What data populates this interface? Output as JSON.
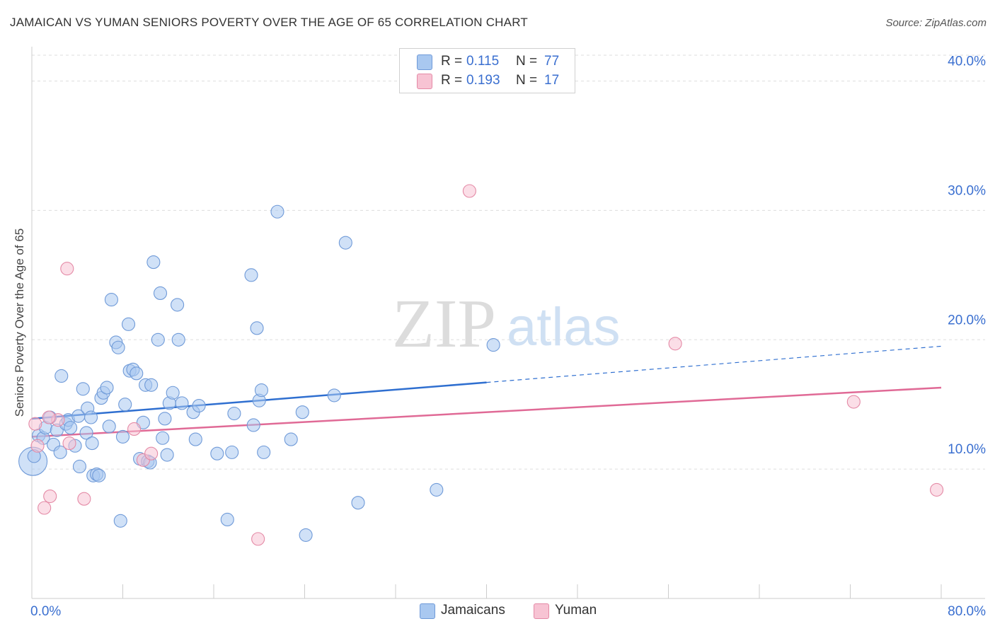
{
  "title": "JAMAICAN VS YUMAN SENIORS POVERTY OVER THE AGE OF 65 CORRELATION CHART",
  "source": "Source: ZipAtlas.com",
  "watermark": {
    "zip": "ZIP",
    "atlas": "atlas"
  },
  "legend": {
    "r_label": "R =",
    "n_label": "N =",
    "rows": [
      {
        "r": "0.115",
        "n": "77",
        "color": "#a9c8f0",
        "border": "#6f9ad8"
      },
      {
        "r": "0.193",
        "n": "17",
        "color": "#f7c3d3",
        "border": "#e48aa6"
      }
    ]
  },
  "bottom_legend": [
    {
      "label": "Jamaicans",
      "color": "#a9c8f0",
      "border": "#6f9ad8"
    },
    {
      "label": "Yuman",
      "color": "#f7c3d3",
      "border": "#e48aa6"
    }
  ],
  "chart_data": {
    "type": "scatter",
    "title": "JAMAICAN VS YUMAN SENIORS POVERTY OVER THE AGE OF 65 CORRELATION CHART",
    "xlabel": "",
    "ylabel": "Seniors Poverty Over the Age of 65",
    "xlim": [
      0,
      80
    ],
    "ylim": [
      0,
      42
    ],
    "x_tick_labels": [
      "0.0%",
      "80.0%"
    ],
    "y_ticks": [
      10,
      20,
      30,
      40
    ],
    "y_tick_labels": [
      "10.0%",
      "20.0%",
      "30.0%",
      "40.0%"
    ],
    "grid": true,
    "legend_position": "top-center",
    "series": [
      {
        "name": "Jamaicans",
        "color": "#6f9ad8",
        "fill": "#a9c8f0",
        "trend": {
          "x": [
            0,
            40,
            80
          ],
          "y": [
            13.9,
            16.7,
            19.5
          ],
          "solid_until": 40,
          "color": "#2f6fd0"
        },
        "points": [
          [
            0.1,
            10.6
          ],
          [
            0.2,
            11.0
          ],
          [
            0.6,
            12.6
          ],
          [
            1.0,
            12.4
          ],
          [
            1.2,
            13.2
          ],
          [
            1.6,
            14.0
          ],
          [
            1.9,
            11.9
          ],
          [
            2.2,
            13.0
          ],
          [
            2.5,
            11.3
          ],
          [
            2.6,
            17.2
          ],
          [
            3.0,
            13.5
          ],
          [
            3.2,
            13.8
          ],
          [
            3.4,
            13.2
          ],
          [
            3.8,
            11.8
          ],
          [
            4.1,
            14.1
          ],
          [
            4.2,
            10.2
          ],
          [
            4.5,
            16.2
          ],
          [
            4.8,
            12.8
          ],
          [
            4.9,
            14.7
          ],
          [
            5.2,
            14.0
          ],
          [
            5.3,
            12.0
          ],
          [
            5.4,
            9.5
          ],
          [
            5.7,
            9.6
          ],
          [
            5.9,
            9.5
          ],
          [
            6.1,
            15.5
          ],
          [
            6.3,
            15.9
          ],
          [
            6.6,
            16.3
          ],
          [
            6.8,
            13.3
          ],
          [
            7.0,
            23.1
          ],
          [
            7.4,
            19.8
          ],
          [
            7.6,
            19.4
          ],
          [
            7.8,
            6.0
          ],
          [
            8.0,
            12.5
          ],
          [
            8.2,
            15.0
          ],
          [
            8.5,
            21.2
          ],
          [
            8.6,
            17.6
          ],
          [
            8.9,
            17.7
          ],
          [
            9.2,
            17.4
          ],
          [
            9.5,
            10.8
          ],
          [
            9.8,
            13.6
          ],
          [
            10.0,
            16.5
          ],
          [
            10.2,
            10.6
          ],
          [
            10.4,
            10.5
          ],
          [
            10.5,
            16.5
          ],
          [
            10.7,
            26.0
          ],
          [
            11.1,
            20.0
          ],
          [
            11.3,
            23.6
          ],
          [
            11.5,
            12.4
          ],
          [
            11.7,
            13.9
          ],
          [
            11.9,
            11.1
          ],
          [
            12.1,
            15.1
          ],
          [
            12.4,
            15.9
          ],
          [
            12.8,
            22.7
          ],
          [
            12.9,
            20.0
          ],
          [
            13.2,
            15.1
          ],
          [
            14.2,
            14.4
          ],
          [
            14.4,
            12.3
          ],
          [
            14.7,
            14.9
          ],
          [
            16.3,
            11.2
          ],
          [
            17.2,
            6.1
          ],
          [
            17.6,
            11.3
          ],
          [
            17.8,
            14.3
          ],
          [
            19.3,
            25.0
          ],
          [
            19.5,
            13.4
          ],
          [
            19.8,
            20.9
          ],
          [
            20.0,
            15.3
          ],
          [
            20.2,
            16.1
          ],
          [
            20.4,
            11.3
          ],
          [
            21.6,
            29.9
          ],
          [
            22.8,
            12.3
          ],
          [
            23.8,
            14.4
          ],
          [
            24.1,
            4.9
          ],
          [
            26.6,
            15.7
          ],
          [
            27.6,
            27.5
          ],
          [
            28.7,
            7.4
          ],
          [
            35.6,
            8.4
          ],
          [
            40.6,
            19.6
          ]
        ]
      },
      {
        "name": "Yuman",
        "color": "#e48aa6",
        "fill": "#f7c3d3",
        "trend": {
          "x": [
            0,
            80
          ],
          "y": [
            12.5,
            16.3
          ],
          "solid_until": 80,
          "color": "#e06a96"
        },
        "points": [
          [
            0.3,
            13.5
          ],
          [
            0.5,
            11.8
          ],
          [
            1.1,
            7.0
          ],
          [
            1.6,
            7.9
          ],
          [
            2.3,
            13.8
          ],
          [
            3.1,
            25.5
          ],
          [
            3.3,
            12.0
          ],
          [
            4.6,
            7.7
          ],
          [
            9.0,
            13.1
          ],
          [
            9.8,
            10.7
          ],
          [
            10.5,
            11.2
          ],
          [
            19.9,
            4.6
          ],
          [
            38.5,
            31.5
          ],
          [
            56.6,
            19.7
          ],
          [
            72.3,
            15.2
          ],
          [
            79.6,
            8.4
          ],
          [
            1.5,
            14.0
          ]
        ]
      }
    ]
  }
}
